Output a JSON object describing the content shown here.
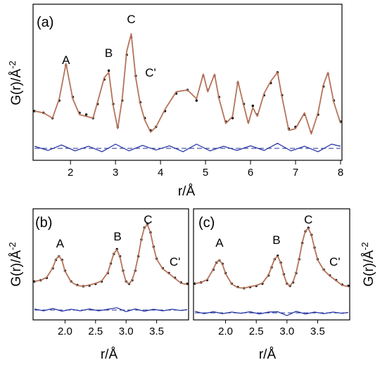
{
  "chart_data": [
    {
      "panel": "(a)",
      "type": "line",
      "xlabel": "r/Å",
      "ylabel": "G(r)/Å",
      "ylabel_exponent": "-2",
      "xlim": [
        1.2,
        8.0
      ],
      "xticks": [
        "2",
        "3",
        "4",
        "5",
        "6",
        "7",
        "8"
      ],
      "xtick_values": [
        2,
        3,
        4,
        5,
        6,
        7,
        8
      ],
      "peak_labels": [
        {
          "label": "A",
          "x": 1.9
        },
        {
          "label": "B",
          "x": 2.85
        },
        {
          "label": "C",
          "x": 3.35
        },
        {
          "label": "C'",
          "x": 3.78
        }
      ],
      "series": [
        {
          "role": "experiment",
          "style": "dots",
          "color": "#000000",
          "x": [
            1.2,
            1.4,
            1.6,
            1.75,
            1.9,
            2.05,
            2.2,
            2.35,
            2.5,
            2.6,
            2.75,
            2.85,
            2.95,
            3.05,
            3.15,
            3.25,
            3.35,
            3.45,
            3.55,
            3.65,
            3.78,
            3.9,
            4.1,
            4.35,
            4.6,
            4.8,
            4.95,
            5.05,
            5.2,
            5.3,
            5.45,
            5.6,
            5.72,
            5.85,
            5.95,
            6.05,
            6.15,
            6.3,
            6.45,
            6.6,
            6.7,
            6.85,
            7.0,
            7.2,
            7.35,
            7.5,
            7.62,
            7.72,
            7.85,
            8.0
          ],
          "y": [
            0.0,
            -0.05,
            -0.2,
            0.3,
            1.3,
            0.4,
            -0.05,
            -0.1,
            -0.2,
            0.2,
            0.9,
            1.15,
            0.2,
            -0.45,
            0.3,
            1.6,
            2.1,
            1.0,
            0.25,
            -0.2,
            -0.55,
            -0.45,
            0.0,
            0.5,
            0.6,
            0.3,
            1.0,
            0.6,
            1.0,
            0.4,
            -0.3,
            -0.2,
            0.8,
            0.2,
            -0.3,
            0.15,
            -0.1,
            0.45,
            0.8,
            1.1,
            0.45,
            -0.5,
            -0.45,
            -0.1,
            -0.6,
            -0.1,
            0.7,
            1.05,
            0.3,
            -0.3
          ]
        },
        {
          "role": "fit",
          "style": "line",
          "color": "#b5735a",
          "x": [
            1.2,
            1.4,
            1.6,
            1.75,
            1.9,
            2.05,
            2.2,
            2.35,
            2.5,
            2.6,
            2.75,
            2.85,
            2.95,
            3.05,
            3.15,
            3.25,
            3.35,
            3.45,
            3.55,
            3.65,
            3.78,
            3.9,
            4.1,
            4.35,
            4.6,
            4.8,
            4.95,
            5.05,
            5.2,
            5.3,
            5.45,
            5.6,
            5.72,
            5.85,
            5.95,
            6.05,
            6.15,
            6.3,
            6.45,
            6.6,
            6.7,
            6.85,
            7.0,
            7.2,
            7.35,
            7.5,
            7.62,
            7.72,
            7.85,
            8.0
          ],
          "y": [
            0.0,
            -0.05,
            -0.2,
            0.35,
            1.35,
            0.35,
            -0.1,
            -0.15,
            -0.2,
            0.25,
            0.95,
            1.1,
            0.15,
            -0.5,
            0.35,
            1.7,
            2.2,
            0.95,
            0.2,
            -0.25,
            -0.6,
            -0.45,
            0.05,
            0.55,
            0.6,
            0.35,
            1.05,
            0.55,
            1.05,
            0.35,
            -0.35,
            -0.15,
            0.85,
            0.15,
            -0.35,
            0.1,
            -0.15,
            0.5,
            0.85,
            1.1,
            0.4,
            -0.55,
            -0.5,
            -0.05,
            -0.65,
            -0.05,
            0.75,
            1.1,
            0.25,
            -0.35
          ]
        },
        {
          "role": "difference",
          "style": "line",
          "color": "#1f2f9e",
          "x": [
            1.2,
            1.5,
            1.8,
            2.1,
            2.4,
            2.7,
            3.0,
            3.3,
            3.6,
            3.9,
            4.2,
            4.5,
            4.8,
            5.1,
            5.4,
            5.7,
            6.0,
            6.3,
            6.6,
            6.9,
            7.2,
            7.5,
            7.8,
            8.0
          ],
          "y": [
            0.05,
            -0.05,
            0.08,
            -0.06,
            0.05,
            -0.08,
            0.1,
            -0.06,
            0.07,
            -0.04,
            0.06,
            -0.08,
            0.1,
            -0.06,
            0.05,
            -0.05,
            0.06,
            -0.05,
            0.12,
            -0.06,
            0.05,
            -0.08,
            0.1,
            0.05
          ]
        }
      ]
    },
    {
      "panel": "(b)",
      "type": "line",
      "xlabel": "r/Å",
      "ylabel": "G(r)/Å",
      "ylabel_exponent": "-2",
      "xlim": [
        1.5,
        4.0
      ],
      "xticks": [
        "2.0",
        "2.5",
        "3.0",
        "3.5"
      ],
      "xtick_values": [
        2.0,
        2.5,
        3.0,
        3.5
      ],
      "peak_labels": [
        {
          "label": "A",
          "x": 1.92
        },
        {
          "label": "B",
          "x": 2.86
        },
        {
          "label": "C",
          "x": 3.36
        },
        {
          "label": "C'",
          "x": 3.8
        }
      ],
      "series": [
        {
          "role": "experiment",
          "style": "dots",
          "color": "#000000",
          "x": [
            1.5,
            1.6,
            1.7,
            1.8,
            1.85,
            1.9,
            1.95,
            2.0,
            2.1,
            2.2,
            2.3,
            2.4,
            2.5,
            2.6,
            2.7,
            2.75,
            2.8,
            2.85,
            2.9,
            2.95,
            3.0,
            3.05,
            3.1,
            3.15,
            3.2,
            3.25,
            3.3,
            3.35,
            3.4,
            3.45,
            3.5,
            3.6,
            3.7,
            3.8,
            3.9,
            4.0
          ],
          "y": [
            0.05,
            0.1,
            0.2,
            0.6,
            0.95,
            1.1,
            0.95,
            0.5,
            0.05,
            -0.1,
            -0.15,
            -0.12,
            -0.05,
            0.05,
            0.4,
            0.8,
            1.2,
            1.4,
            1.1,
            0.5,
            0.05,
            -0.05,
            0.1,
            0.5,
            1.1,
            1.8,
            2.3,
            2.45,
            2.1,
            1.5,
            1.0,
            0.6,
            0.4,
            0.2,
            0.0,
            -0.05
          ]
        },
        {
          "role": "fit",
          "style": "line",
          "color": "#b5735a",
          "x": [
            1.5,
            1.6,
            1.7,
            1.8,
            1.85,
            1.9,
            1.95,
            2.0,
            2.1,
            2.2,
            2.3,
            2.4,
            2.5,
            2.6,
            2.7,
            2.75,
            2.8,
            2.85,
            2.9,
            2.95,
            3.0,
            3.05,
            3.1,
            3.15,
            3.2,
            3.25,
            3.3,
            3.35,
            3.4,
            3.45,
            3.5,
            3.6,
            3.7,
            3.8,
            3.9,
            4.0
          ],
          "y": [
            0.05,
            0.1,
            0.22,
            0.62,
            0.97,
            1.12,
            0.93,
            0.48,
            0.03,
            -0.12,
            -0.15,
            -0.1,
            -0.03,
            0.07,
            0.42,
            0.82,
            1.22,
            1.38,
            1.08,
            0.48,
            0.03,
            -0.05,
            0.12,
            0.52,
            1.12,
            1.82,
            2.3,
            2.43,
            2.08,
            1.48,
            0.98,
            0.58,
            0.38,
            0.18,
            -0.02,
            -0.08
          ]
        },
        {
          "role": "difference",
          "style": "line",
          "color": "#1f2f9e",
          "x": [
            1.5,
            1.65,
            1.8,
            1.95,
            2.1,
            2.25,
            2.4,
            2.55,
            2.7,
            2.85,
            3.0,
            3.15,
            3.3,
            3.45,
            3.6,
            3.75,
            3.9,
            4.0
          ],
          "y": [
            0.03,
            -0.02,
            0.04,
            -0.03,
            0.02,
            -0.02,
            0.03,
            -0.02,
            0.02,
            0.06,
            -0.04,
            0.03,
            -0.03,
            0.02,
            -0.02,
            0.02,
            -0.01,
            0.01
          ]
        }
      ]
    },
    {
      "panel": "(c)",
      "type": "line",
      "xlabel": "r/Å",
      "ylabel": "G(r)/Å",
      "ylabel_exponent": "-2",
      "xlim": [
        1.5,
        4.0
      ],
      "xticks": [
        "2.0",
        "2.5",
        "3.0",
        "3.5"
      ],
      "xtick_values": [
        2.0,
        2.5,
        3.0,
        3.5
      ],
      "peak_labels": [
        {
          "label": "A",
          "x": 1.9
        },
        {
          "label": "B",
          "x": 2.83
        },
        {
          "label": "C",
          "x": 3.35
        },
        {
          "label": "C'",
          "x": 3.78
        }
      ],
      "series": [
        {
          "role": "experiment",
          "style": "dots",
          "color": "#000000",
          "x": [
            1.5,
            1.6,
            1.7,
            1.8,
            1.85,
            1.9,
            1.95,
            2.0,
            2.1,
            2.2,
            2.3,
            2.4,
            2.5,
            2.6,
            2.7,
            2.75,
            2.8,
            2.85,
            2.9,
            2.95,
            3.0,
            3.05,
            3.1,
            3.15,
            3.2,
            3.25,
            3.3,
            3.35,
            3.4,
            3.45,
            3.5,
            3.6,
            3.7,
            3.8,
            3.9,
            4.0
          ],
          "y": [
            0.05,
            0.1,
            0.2,
            0.65,
            0.95,
            1.05,
            0.9,
            0.5,
            0.05,
            -0.1,
            -0.15,
            -0.1,
            -0.05,
            0.05,
            0.4,
            0.75,
            1.1,
            1.25,
            0.95,
            0.45,
            0.05,
            -0.05,
            0.1,
            0.5,
            1.1,
            1.8,
            2.3,
            2.45,
            2.15,
            1.6,
            1.1,
            0.65,
            0.4,
            0.2,
            0.0,
            -0.05
          ]
        },
        {
          "role": "fit",
          "style": "line",
          "color": "#b5735a",
          "x": [
            1.5,
            1.6,
            1.7,
            1.8,
            1.85,
            1.9,
            1.95,
            2.0,
            2.1,
            2.2,
            2.3,
            2.4,
            2.5,
            2.6,
            2.7,
            2.75,
            2.8,
            2.85,
            2.9,
            2.95,
            3.0,
            3.05,
            3.1,
            3.15,
            3.2,
            3.25,
            3.3,
            3.35,
            3.4,
            3.45,
            3.5,
            3.6,
            3.7,
            3.8,
            3.9,
            4.0
          ],
          "y": [
            0.05,
            0.1,
            0.22,
            0.67,
            0.97,
            1.07,
            0.88,
            0.48,
            0.03,
            -0.12,
            -0.15,
            -0.08,
            -0.03,
            0.07,
            0.42,
            0.77,
            1.12,
            1.23,
            0.93,
            0.43,
            0.03,
            -0.05,
            0.12,
            0.52,
            1.12,
            1.82,
            2.32,
            2.43,
            2.13,
            1.58,
            1.08,
            0.63,
            0.38,
            0.18,
            -0.02,
            -0.08
          ]
        },
        {
          "role": "difference",
          "style": "line",
          "color": "#1f2f9e",
          "x": [
            1.5,
            1.65,
            1.8,
            1.95,
            2.1,
            2.25,
            2.4,
            2.55,
            2.7,
            2.85,
            3.0,
            3.15,
            3.3,
            3.45,
            3.6,
            3.75,
            3.9,
            4.0
          ],
          "y": [
            0.04,
            -0.02,
            0.03,
            -0.02,
            0.02,
            -0.01,
            0.03,
            -0.03,
            0.02,
            0.03,
            -0.07,
            0.04,
            -0.03,
            0.02,
            -0.02,
            0.02,
            -0.01,
            0.01
          ]
        }
      ]
    }
  ]
}
